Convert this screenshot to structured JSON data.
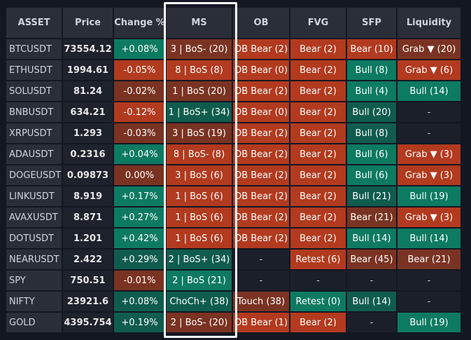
{
  "colors": {
    "background": "#131722",
    "bull_green": "#0d7a62",
    "dark_green": "#0f5c4e",
    "bear_red": "#b23a1f",
    "dark_red": "#7a3322",
    "neutral": "#1b1f2a",
    "highlight_border": "#ffffff"
  },
  "columns": [
    "ASSET",
    "Price",
    "Change %",
    "MS",
    "OB",
    "FVG",
    "SFP",
    "Liquidity"
  ],
  "rows": [
    {
      "asset": "BTCUSDT",
      "price": "73554.12",
      "change": {
        "text": "+0.08%",
        "tone": "g"
      },
      "ms": {
        "text": "3 | BoS- (20)",
        "tone": "rd"
      },
      "ob": {
        "text": "OB Bear (2)",
        "tone": "r"
      },
      "fvg": {
        "text": "Bear (2)",
        "tone": "r"
      },
      "sfp": {
        "text": "Bear (10)",
        "tone": "r"
      },
      "liq": {
        "text": "Grab ▼ (20)",
        "tone": "rd"
      }
    },
    {
      "asset": "ETHUSDT",
      "price": "1994.61",
      "change": {
        "text": "-0.05%",
        "tone": "r"
      },
      "ms": {
        "text": "8 | BoS (8)",
        "tone": "r"
      },
      "ob": {
        "text": "OB Bear (0)",
        "tone": "r"
      },
      "fvg": {
        "text": "Bear (2)",
        "tone": "r"
      },
      "sfp": {
        "text": "Bull (8)",
        "tone": "g"
      },
      "liq": {
        "text": "Grab ▼ (6)",
        "tone": "r"
      }
    },
    {
      "asset": "SOLUSDT",
      "price": "81.24",
      "change": {
        "text": "-0.02%",
        "tone": "rd"
      },
      "ms": {
        "text": "1 | BoS (20)",
        "tone": "rd"
      },
      "ob": {
        "text": "OB Bear (2)",
        "tone": "r"
      },
      "fvg": {
        "text": "Bear (2)",
        "tone": "r"
      },
      "sfp": {
        "text": "Bull (4)",
        "tone": "g"
      },
      "liq": {
        "text": "Bull (14)",
        "tone": "g"
      }
    },
    {
      "asset": "BNBUSDT",
      "price": "634.21",
      "change": {
        "text": "-0.12%",
        "tone": "r"
      },
      "ms": {
        "text": "1 | BoS+ (34)",
        "tone": "gd"
      },
      "ob": {
        "text": "OB Bear (0)",
        "tone": "r"
      },
      "fvg": {
        "text": "Bear (2)",
        "tone": "r"
      },
      "sfp": {
        "text": "Bull (20)",
        "tone": "gd"
      },
      "liq": {
        "text": "-",
        "tone": "n"
      }
    },
    {
      "asset": "XRPUSDT",
      "price": "1.293",
      "change": {
        "text": "-0.03%",
        "tone": "rd"
      },
      "ms": {
        "text": "3 | BoS (19)",
        "tone": "rd"
      },
      "ob": {
        "text": "OB Bear (2)",
        "tone": "r"
      },
      "fvg": {
        "text": "Bear (2)",
        "tone": "r"
      },
      "sfp": {
        "text": "Bull (8)",
        "tone": "gd"
      },
      "liq": {
        "text": "-",
        "tone": "n"
      }
    },
    {
      "asset": "ADAUSDT",
      "price": "0.2316",
      "change": {
        "text": "+0.04%",
        "tone": "g"
      },
      "ms": {
        "text": "8 | BoS- (8)",
        "tone": "r"
      },
      "ob": {
        "text": "OB Bear (2)",
        "tone": "r"
      },
      "fvg": {
        "text": "Bear (2)",
        "tone": "r"
      },
      "sfp": {
        "text": "Bull (6)",
        "tone": "g"
      },
      "liq": {
        "text": "Grab ▼ (3)",
        "tone": "r"
      }
    },
    {
      "asset": "DOGEUSDT",
      "price": "0.09873",
      "change": {
        "text": "0.00%",
        "tone": "rd"
      },
      "ms": {
        "text": "3 | BoS (6)",
        "tone": "r"
      },
      "ob": {
        "text": "OB Bear (2)",
        "tone": "r"
      },
      "fvg": {
        "text": "Bear (2)",
        "tone": "r"
      },
      "sfp": {
        "text": "Bull (6)",
        "tone": "g"
      },
      "liq": {
        "text": "Grab ▼ (3)",
        "tone": "r"
      }
    },
    {
      "asset": "LINKUSDT",
      "price": "8.919",
      "change": {
        "text": "+0.17%",
        "tone": "g"
      },
      "ms": {
        "text": "1 | BoS (6)",
        "tone": "r"
      },
      "ob": {
        "text": "OB Bear (2)",
        "tone": "r"
      },
      "fvg": {
        "text": "Bear (2)",
        "tone": "r"
      },
      "sfp": {
        "text": "Bull (21)",
        "tone": "gd"
      },
      "liq": {
        "text": "Bull (19)",
        "tone": "g"
      }
    },
    {
      "asset": "AVAXUSDT",
      "price": "8.871",
      "change": {
        "text": "+0.27%",
        "tone": "g"
      },
      "ms": {
        "text": "1 | BoS (6)",
        "tone": "r"
      },
      "ob": {
        "text": "OB Bear (2)",
        "tone": "r"
      },
      "fvg": {
        "text": "Bear (2)",
        "tone": "r"
      },
      "sfp": {
        "text": "Bear (21)",
        "tone": "rd"
      },
      "liq": {
        "text": "Grab ▼ (3)",
        "tone": "r"
      }
    },
    {
      "asset": "DOTUSDT",
      "price": "1.201",
      "change": {
        "text": "+0.42%",
        "tone": "g"
      },
      "ms": {
        "text": "1 | BoS (6)",
        "tone": "r"
      },
      "ob": {
        "text": "OB Bear (2)",
        "tone": "r"
      },
      "fvg": {
        "text": "Bear (2)",
        "tone": "r"
      },
      "sfp": {
        "text": "Bull (14)",
        "tone": "g"
      },
      "liq": {
        "text": "Bull (14)",
        "tone": "g"
      }
    },
    {
      "asset": "NEARUSDT",
      "price": "2.422",
      "change": {
        "text": "+0.29%",
        "tone": "gd"
      },
      "ms": {
        "text": "2 | BoS+ (34)",
        "tone": "gd"
      },
      "ob": {
        "text": "-",
        "tone": "n"
      },
      "fvg": {
        "text": "Retest (6)",
        "tone": "r"
      },
      "sfp": {
        "text": "Bear (45)",
        "tone": "rd"
      },
      "liq": {
        "text": "Bear (21)",
        "tone": "rd"
      }
    },
    {
      "asset": "SPY",
      "price": "750.51",
      "change": {
        "text": "-0.01%",
        "tone": "rd"
      },
      "ms": {
        "text": "2 | BoS (21)",
        "tone": "g"
      },
      "ob": {
        "text": "-",
        "tone": "n"
      },
      "fvg": {
        "text": "-",
        "tone": "n"
      },
      "sfp": {
        "text": "-",
        "tone": "n"
      },
      "liq": {
        "text": "-",
        "tone": "n"
      }
    },
    {
      "asset": "NIFTY",
      "price": "23921.6",
      "change": {
        "text": "+0.08%",
        "tone": "gd"
      },
      "ms": {
        "text": "ChoCh+ (38)",
        "tone": "gd"
      },
      "ob": {
        "text": "Touch (38)",
        "tone": "rd"
      },
      "fvg": {
        "text": "Retest (0)",
        "tone": "g"
      },
      "sfp": {
        "text": "Bull (14)",
        "tone": "gd"
      },
      "liq": {
        "text": "-",
        "tone": "n"
      }
    },
    {
      "asset": "GOLD",
      "price": "4395.754",
      "change": {
        "text": "+0.19%",
        "tone": "gd"
      },
      "ms": {
        "text": "2 | BoS- (20)",
        "tone": "rd"
      },
      "ob": {
        "text": "OB Bear (1)",
        "tone": "r"
      },
      "fvg": {
        "text": "Bear (2)",
        "tone": "r"
      },
      "sfp": {
        "text": "-",
        "tone": "n"
      },
      "liq": {
        "text": "Bull (19)",
        "tone": "g"
      }
    }
  ]
}
